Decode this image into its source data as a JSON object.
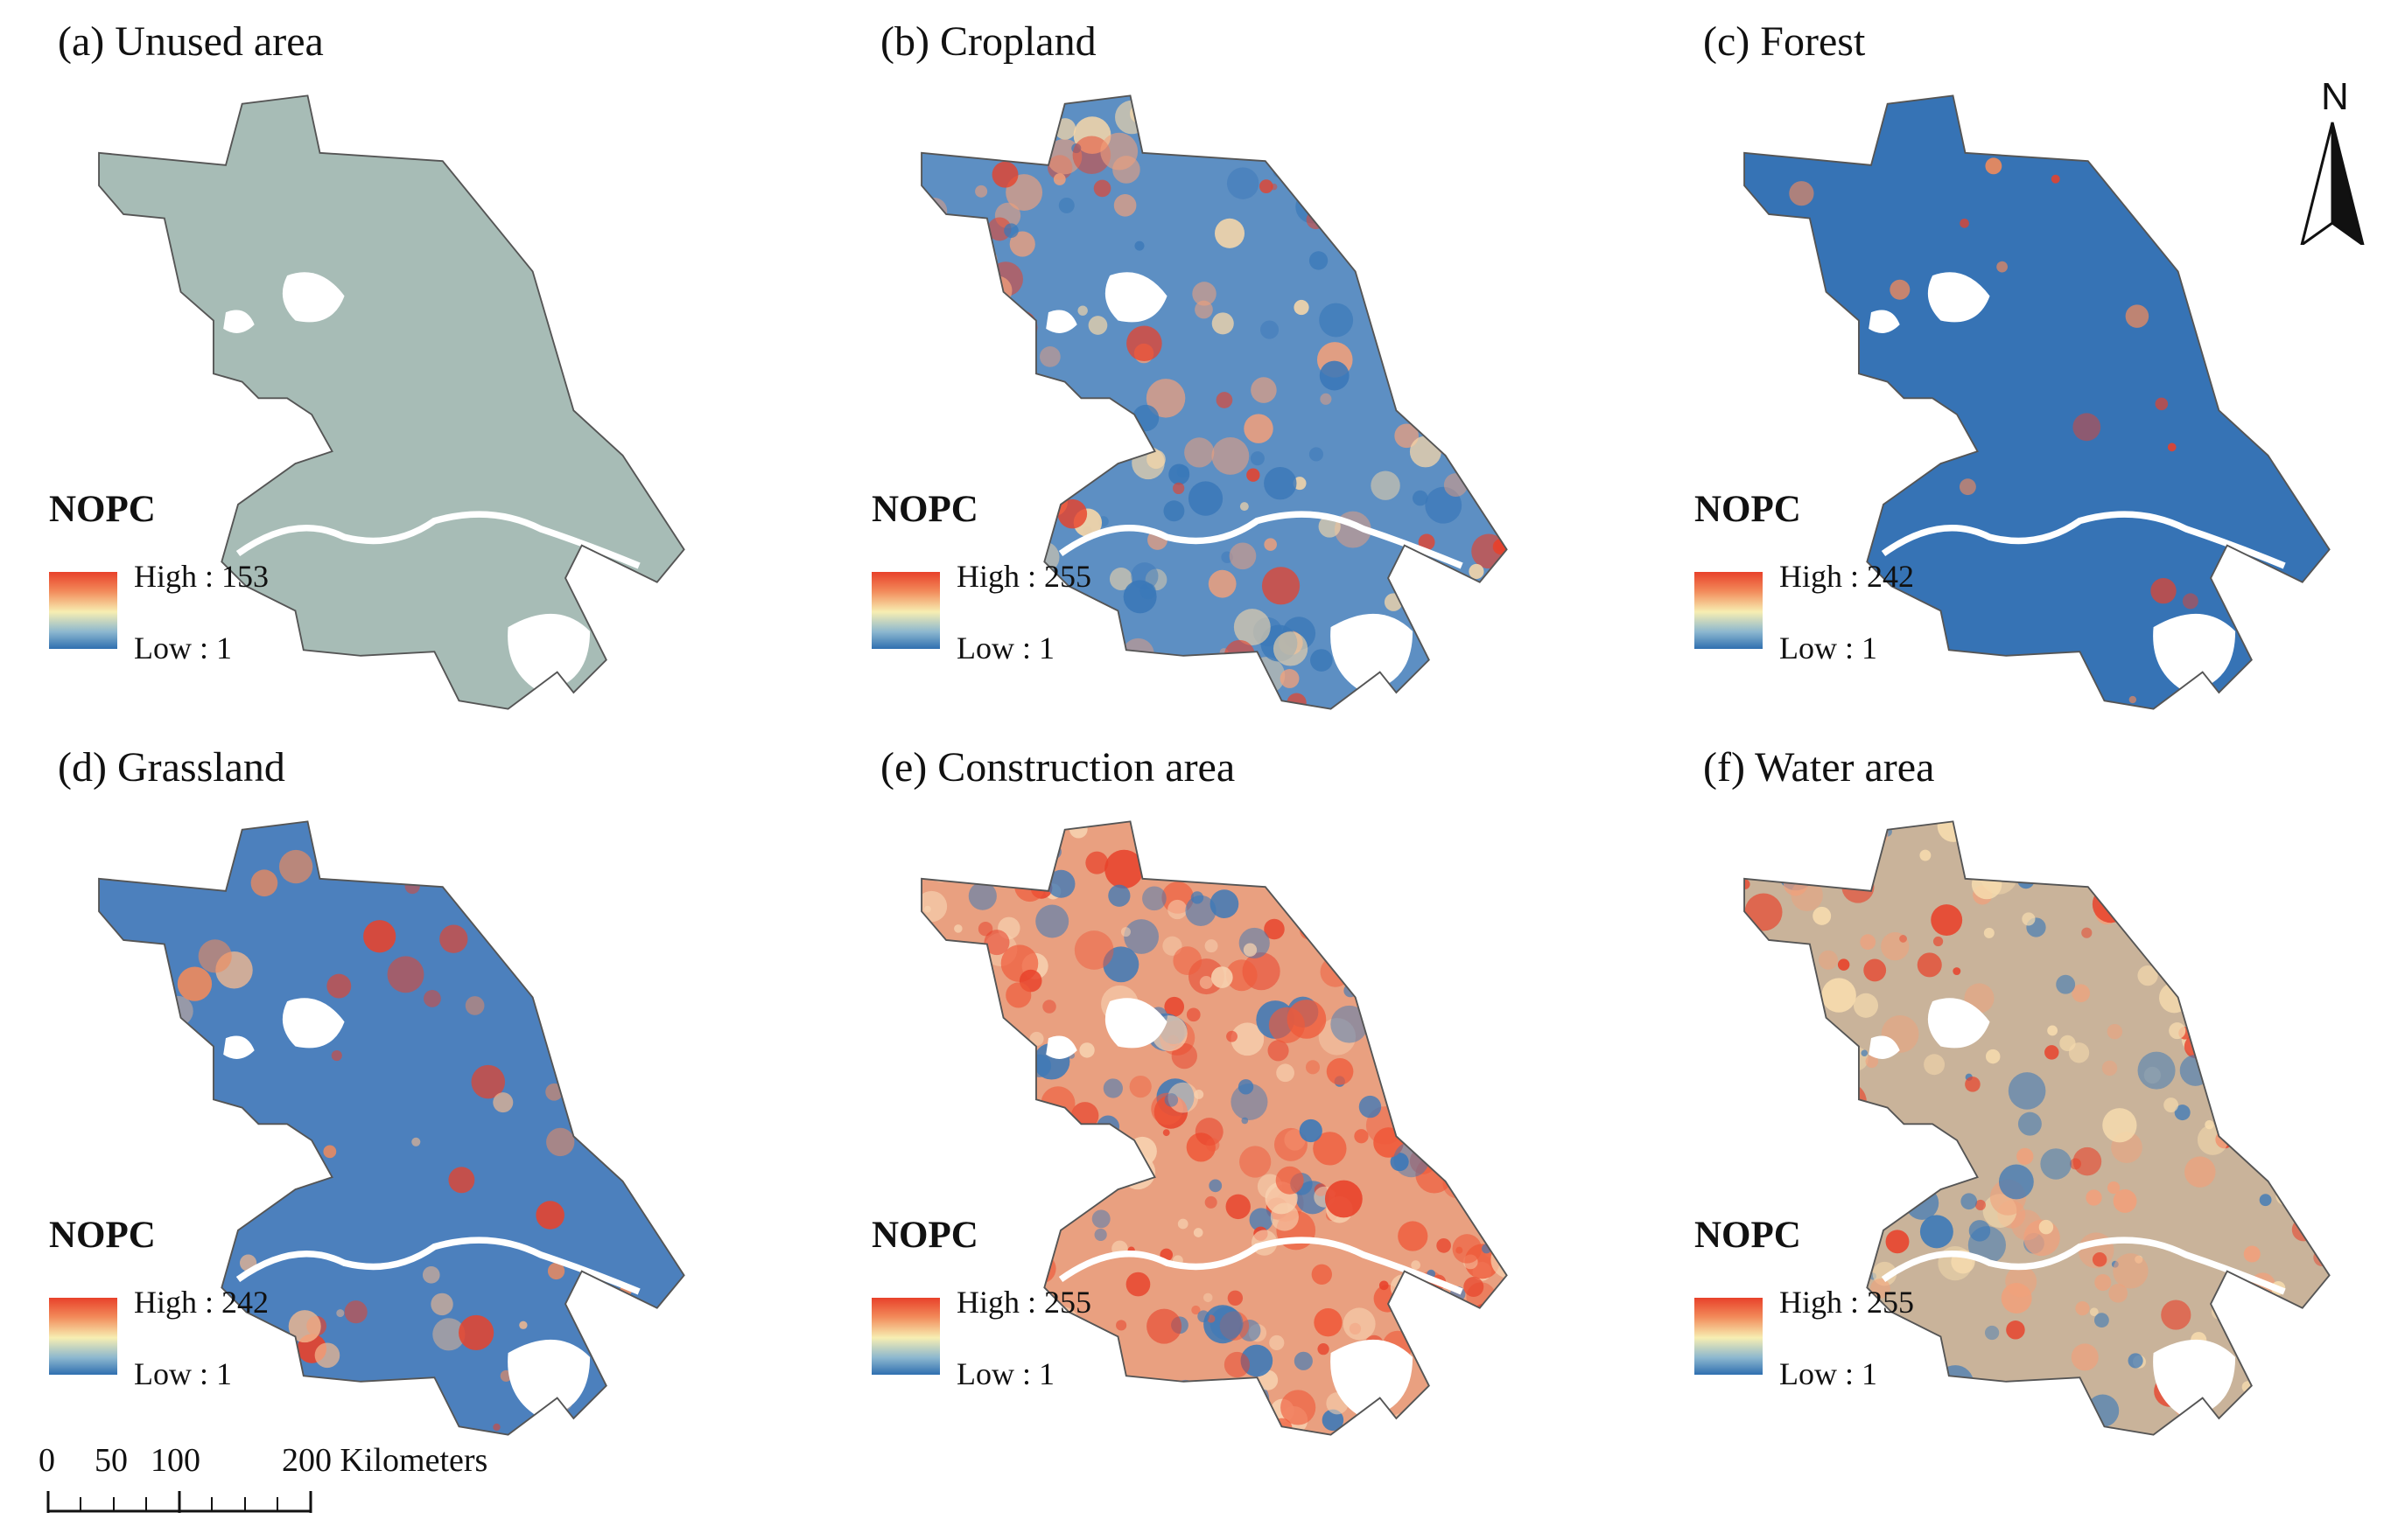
{
  "panels": [
    {
      "title": "(a) Unused area",
      "legend_title": "NOPC",
      "high": "High : 153",
      "low": "Low : 1",
      "theme": "unused"
    },
    {
      "title": "(b) Cropland",
      "legend_title": "NOPC",
      "high": "High : 255",
      "low": "Low : 1",
      "theme": "mixed"
    },
    {
      "title": "(c) Forest",
      "legend_title": "NOPC",
      "high": "High : 242",
      "low": "Low : 1",
      "theme": "blue"
    },
    {
      "title": "(d) Grassland",
      "legend_title": "NOPC",
      "high": "High : 242",
      "low": "Low : 1",
      "theme": "blue_light"
    },
    {
      "title": "(e) Construction area",
      "legend_title": "NOPC",
      "high": "High : 255",
      "low": "Low : 1",
      "theme": "red"
    },
    {
      "title": "(f) Water area",
      "legend_title": "NOPC",
      "high": "High : 255",
      "low": "Low : 1",
      "theme": "mixed_orange"
    }
  ],
  "north_arrow": {
    "label": "N"
  },
  "scale_bar": {
    "labels": [
      "0",
      "50",
      "100",
      "200 Kilometers"
    ]
  },
  "colors": {
    "high": "#e8412a",
    "mid": "#f7eeb2",
    "low": "#2f6fb0",
    "unused_fill": "#a7bcb6",
    "outline": "#555555"
  }
}
